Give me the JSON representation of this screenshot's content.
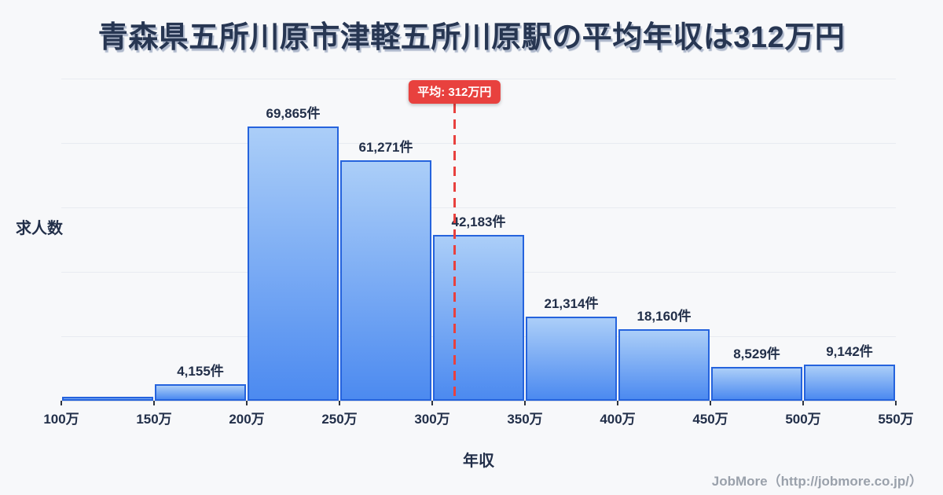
{
  "title": "青森県五所川原市津軽五所川原駅の平均年収は312万円",
  "footer": "JobMore（http://jobmore.co.jp/）",
  "colors": {
    "background": "#f7f8fa",
    "title_text": "#273652",
    "axis_text": "#222f49",
    "grid_line": "#e8ebf1",
    "tick_mark": "#2e3440",
    "bar_border": "#2563dd",
    "bar_gradient_top": "#abcef8",
    "bar_gradient_bottom": "#4c8af0",
    "average_red": "#e8413e",
    "footer_text": "#9aa1ab"
  },
  "chart_data": {
    "type": "bar",
    "title": "青森県五所川原市津軽五所川原駅の平均年収は312万円",
    "xlabel": "年収",
    "ylabel": "求人数",
    "categories": [
      "100万",
      "150万",
      "200万",
      "250万",
      "300万",
      "350万",
      "400万",
      "450万",
      "500万",
      "550万"
    ],
    "bin_width_man": 50,
    "x_range_man": [
      100,
      550
    ],
    "values": [
      0,
      4155,
      69865,
      61271,
      42183,
      21314,
      18160,
      8529,
      9142
    ],
    "labels": [
      "",
      "4,155件",
      "69,865件",
      "61,271件",
      "42,183件",
      "21,314件",
      "18,160件",
      "8,529件",
      "9,142件"
    ],
    "ylim": [
      0,
      82000
    ],
    "grid": "horizontal",
    "grid_divisions": 5,
    "average": {
      "value": 312,
      "unit": "万円",
      "label": "平均: 312万円"
    }
  }
}
